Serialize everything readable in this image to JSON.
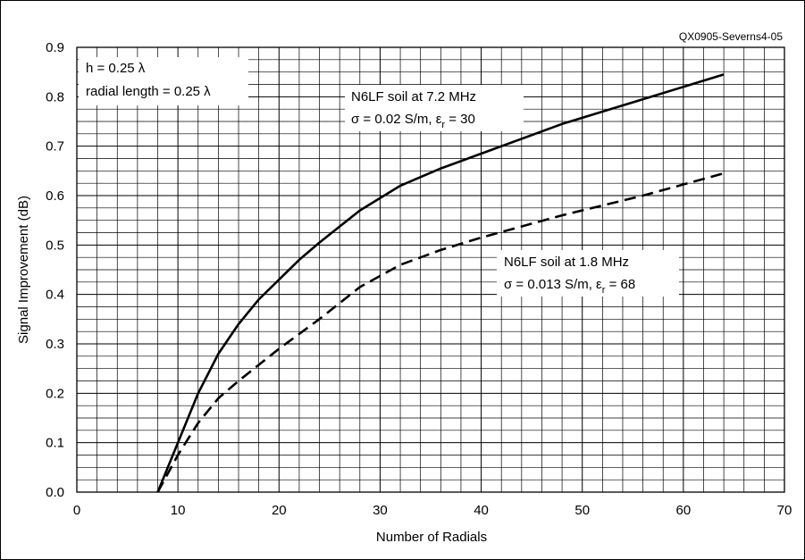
{
  "figure_id": "QX0905-Severns4-05",
  "chart_data": {
    "type": "line",
    "xlabel": "Number of Radials",
    "ylabel": "Signal Improvement (dB)",
    "xlim": [
      0,
      70
    ],
    "ylim": [
      0,
      0.9
    ],
    "x_ticks": [
      "0",
      "10",
      "20",
      "30",
      "40",
      "50",
      "60",
      "70"
    ],
    "y_ticks": [
      "0.0",
      "0.1",
      "0.2",
      "0.3",
      "0.4",
      "0.5",
      "0.6",
      "0.7",
      "0.8",
      "0.9"
    ],
    "grid": true,
    "series": [
      {
        "style": "solid",
        "color": "#000000",
        "x": [
          8,
          10,
          12,
          14,
          16,
          18,
          20,
          22,
          24,
          28,
          32,
          36,
          40,
          48,
          56,
          64
        ],
        "y": [
          0.0,
          0.1,
          0.2,
          0.28,
          0.34,
          0.39,
          0.43,
          0.47,
          0.505,
          0.57,
          0.62,
          0.655,
          0.685,
          0.745,
          0.795,
          0.845
        ]
      },
      {
        "style": "dashed",
        "color": "#000000",
        "x": [
          8,
          10,
          12,
          14,
          16,
          20,
          24,
          28,
          32,
          36,
          40,
          48,
          56,
          64
        ],
        "y": [
          0.0,
          0.075,
          0.14,
          0.19,
          0.225,
          0.29,
          0.35,
          0.415,
          0.46,
          0.49,
          0.515,
          0.56,
          0.6,
          0.645
        ]
      }
    ],
    "annotations": {
      "params_box": {
        "line1": "h = 0.25 λ",
        "line2": "radial length = 0.25 λ"
      },
      "label_72": {
        "line1": "N6LF soil at 7.2 MHz",
        "line2_pre": "σ = 0.02 S/m, ε",
        "line2_sub": "r",
        "line2_post": " = 30"
      },
      "label_18": {
        "line1": "N6LF soil at 1.8 MHz",
        "line2_pre": "σ = 0.013 S/m, ε",
        "line2_sub": "r",
        "line2_post": " = 68"
      }
    }
  }
}
